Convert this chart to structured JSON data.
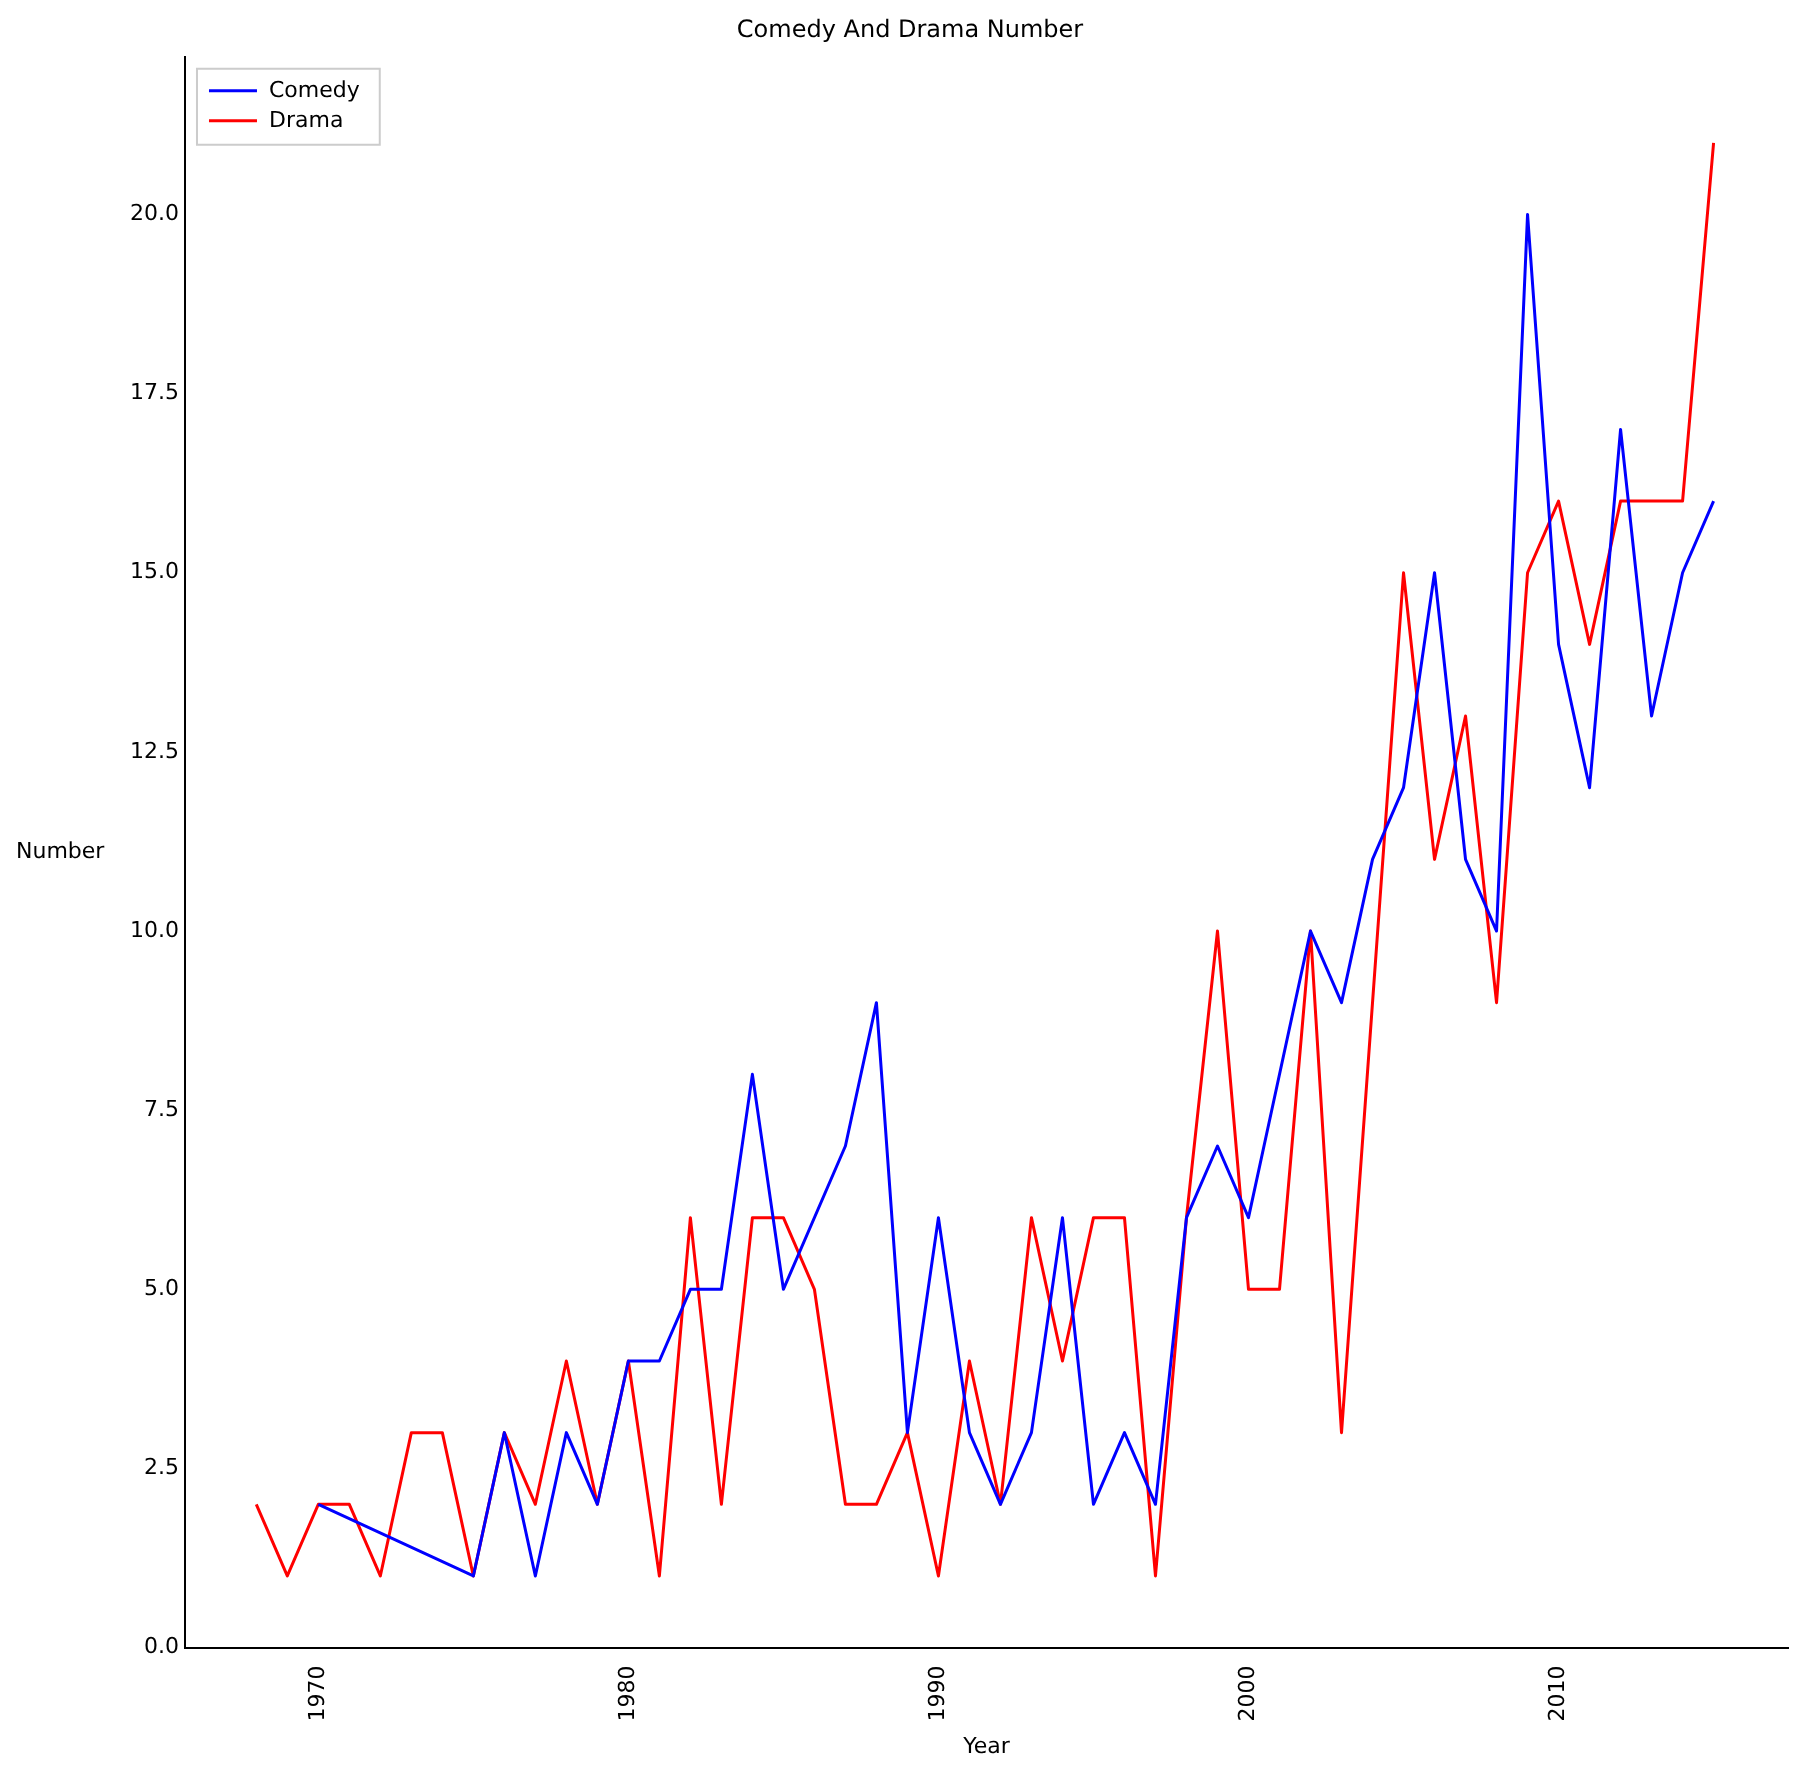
{
  "chart_data": {
    "type": "line",
    "title": "Comedy And Drama Number",
    "xlabel": "Year",
    "ylabel": "Number",
    "xlim": [
      1965.7,
      2017.4
    ],
    "xticks": [
      1970,
      1980,
      1990,
      2000,
      2010
    ],
    "ylim": [
      0,
      22.2
    ],
    "yticks": [
      {
        "value": 0,
        "label": "0.0"
      },
      {
        "value": 2.5,
        "label": "2.5"
      },
      {
        "value": 5,
        "label": "5.0"
      },
      {
        "value": 7.5,
        "label": "7.5"
      },
      {
        "value": 10,
        "label": "10.0"
      },
      {
        "value": 12.5,
        "label": "12.5"
      },
      {
        "value": 15,
        "label": "15.0"
      },
      {
        "value": 17.5,
        "label": "17.5"
      },
      {
        "value": 20,
        "label": "20.0"
      }
    ],
    "grid": false,
    "legend": "top left",
    "marker": "none",
    "line_style": "solid",
    "series": [
      {
        "name": "Comedy",
        "color": "#0000ff",
        "x": [
          1970,
          1975,
          1976,
          1977,
          1978,
          1979,
          1980,
          1981,
          1982,
          1983,
          1984,
          1985,
          1987,
          1988,
          1989,
          1990,
          1991,
          1992,
          1993,
          1994,
          1995,
          1996,
          1997,
          1998,
          1999,
          2000,
          2002,
          2003,
          2004,
          2005,
          2006,
          2007,
          2008,
          2009,
          2010,
          2011,
          2012,
          2013,
          2014,
          2015
        ],
        "values": [
          2,
          1,
          3,
          1,
          3,
          2,
          4,
          4,
          5,
          5,
          8,
          5,
          7,
          9,
          3,
          6,
          3,
          2,
          3,
          6,
          2,
          3,
          2,
          6,
          7,
          6,
          10,
          9,
          11,
          12,
          15,
          11,
          10,
          20,
          14,
          12,
          17,
          13,
          15,
          16
        ]
      },
      {
        "name": "Drama",
        "color": "#ff0000",
        "x": [
          1968,
          1969,
          1970,
          1971,
          1972,
          1973,
          1974,
          1975,
          1976,
          1977,
          1978,
          1979,
          1980,
          1981,
          1982,
          1983,
          1984,
          1985,
          1986,
          1987,
          1988,
          1989,
          1990,
          1991,
          1992,
          1993,
          1994,
          1995,
          1996,
          1997,
          1998,
          1999,
          2000,
          2001,
          2002,
          2003,
          2005,
          2006,
          2007,
          2008,
          2009,
          2010,
          2011,
          2012,
          2013,
          2014,
          2015
        ],
        "values": [
          2,
          1,
          2,
          2,
          1,
          3,
          3,
          1,
          3,
          2,
          4,
          2,
          4,
          1,
          6,
          2,
          6,
          6,
          5,
          2,
          2,
          3,
          1,
          4,
          2,
          6,
          4,
          6,
          6,
          1,
          6,
          10,
          5,
          5,
          10,
          3,
          15,
          11,
          13,
          9,
          15,
          16,
          14,
          16,
          16,
          16,
          21
        ]
      }
    ]
  }
}
